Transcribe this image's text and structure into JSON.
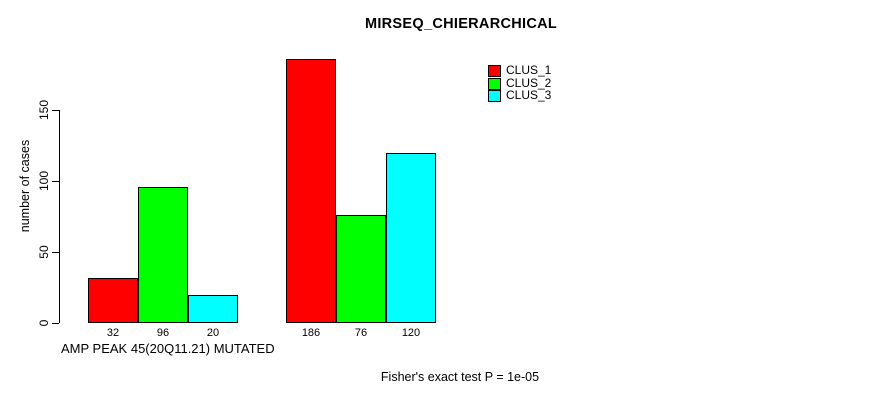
{
  "title": "MIRSEQ_CHIERARCHICAL",
  "y_axis": {
    "label": "number of cases",
    "ticks": [
      0,
      50,
      100,
      150
    ]
  },
  "x_axis": {
    "label": "AMP PEAK 45(20Q11.21) MUTATED"
  },
  "footnote": "Fisher's exact test P = 1e-05",
  "legend": {
    "items": [
      {
        "label": "CLUS_1",
        "color": "#FF0000"
      },
      {
        "label": "CLUS_2",
        "color": "#00FF00"
      },
      {
        "label": "CLUS_3",
        "color": "#00FFFF"
      }
    ]
  },
  "chart_data": {
    "type": "bar",
    "title": "MIRSEQ_CHIERARCHICAL",
    "xlabel": "AMP PEAK 45(20Q11.21) MUTATED",
    "ylabel": "number of cases",
    "ylim": [
      0,
      190
    ],
    "yticks": [
      0,
      50,
      100,
      150
    ],
    "grid": false,
    "legend_position": "top-right",
    "bar_value_labels_shown": true,
    "groups": [
      {
        "name": "group-1",
        "values": [
          32,
          96,
          20
        ]
      },
      {
        "name": "group-2",
        "values": [
          186,
          76,
          120
        ]
      }
    ],
    "series": [
      {
        "name": "CLUS_1",
        "color": "#FF0000",
        "values": [
          32,
          186
        ]
      },
      {
        "name": "CLUS_2",
        "color": "#00FF00",
        "values": [
          96,
          76
        ]
      },
      {
        "name": "CLUS_3",
        "color": "#00FFFF",
        "values": [
          20,
          120
        ]
      }
    ],
    "bar_colors": [
      "#FF0000",
      "#00FF00",
      "#00FFFF"
    ]
  }
}
